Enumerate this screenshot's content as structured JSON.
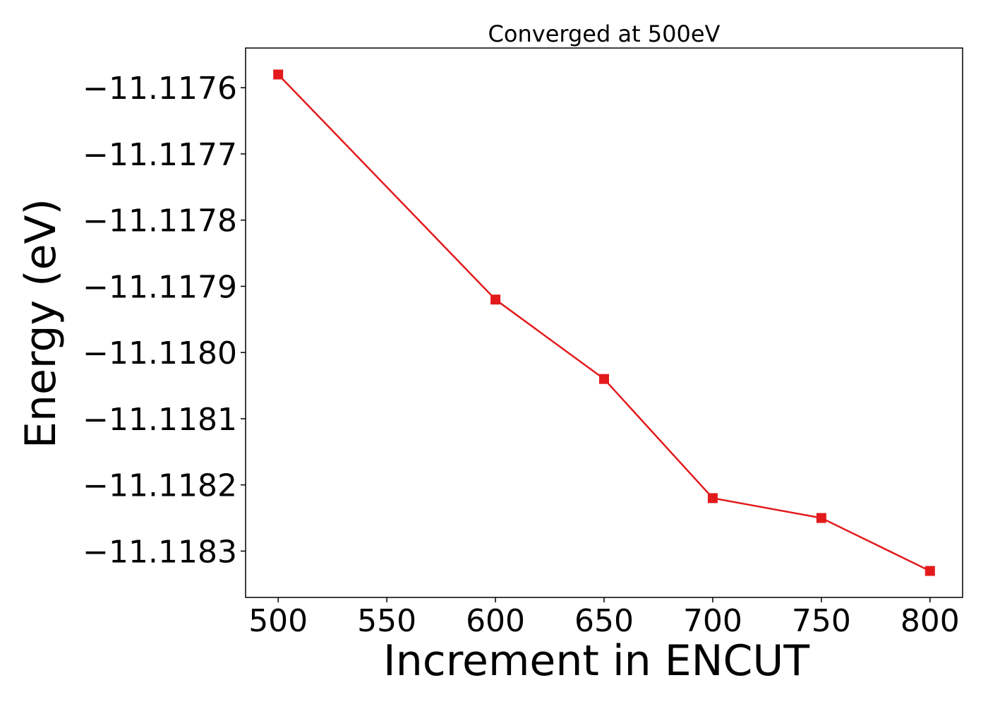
{
  "chart_data": {
    "type": "line",
    "title": "Converged at 500eV",
    "xlabel": "Increment in ENCUT",
    "ylabel": "Energy (eV)",
    "x": [
      500,
      600,
      650,
      700,
      750,
      800
    ],
    "series": [
      {
        "values": [
          -11.11758,
          -11.11792,
          -11.11804,
          -11.11822,
          -11.11825,
          -11.11833
        ],
        "color": "#e31a1c",
        "marker": "square"
      }
    ],
    "xlim": [
      485,
      815
    ],
    "ylim": [
      -11.11837,
      -11.11754
    ],
    "xticks": [
      500,
      550,
      600,
      650,
      700,
      750,
      800
    ],
    "xtick_labels": [
      "500",
      "550",
      "600",
      "650",
      "700",
      "750",
      "800"
    ],
    "yticks": [
      -11.1176,
      -11.1177,
      -11.1178,
      -11.1179,
      -11.118,
      -11.1181,
      -11.1182,
      -11.1183
    ],
    "ytick_labels": [
      "−11.1176",
      "−11.1177",
      "−11.1178",
      "−11.1179",
      "−11.1180",
      "−11.1181",
      "−11.1182",
      "−11.1183"
    ],
    "grid": false,
    "legend": false
  }
}
